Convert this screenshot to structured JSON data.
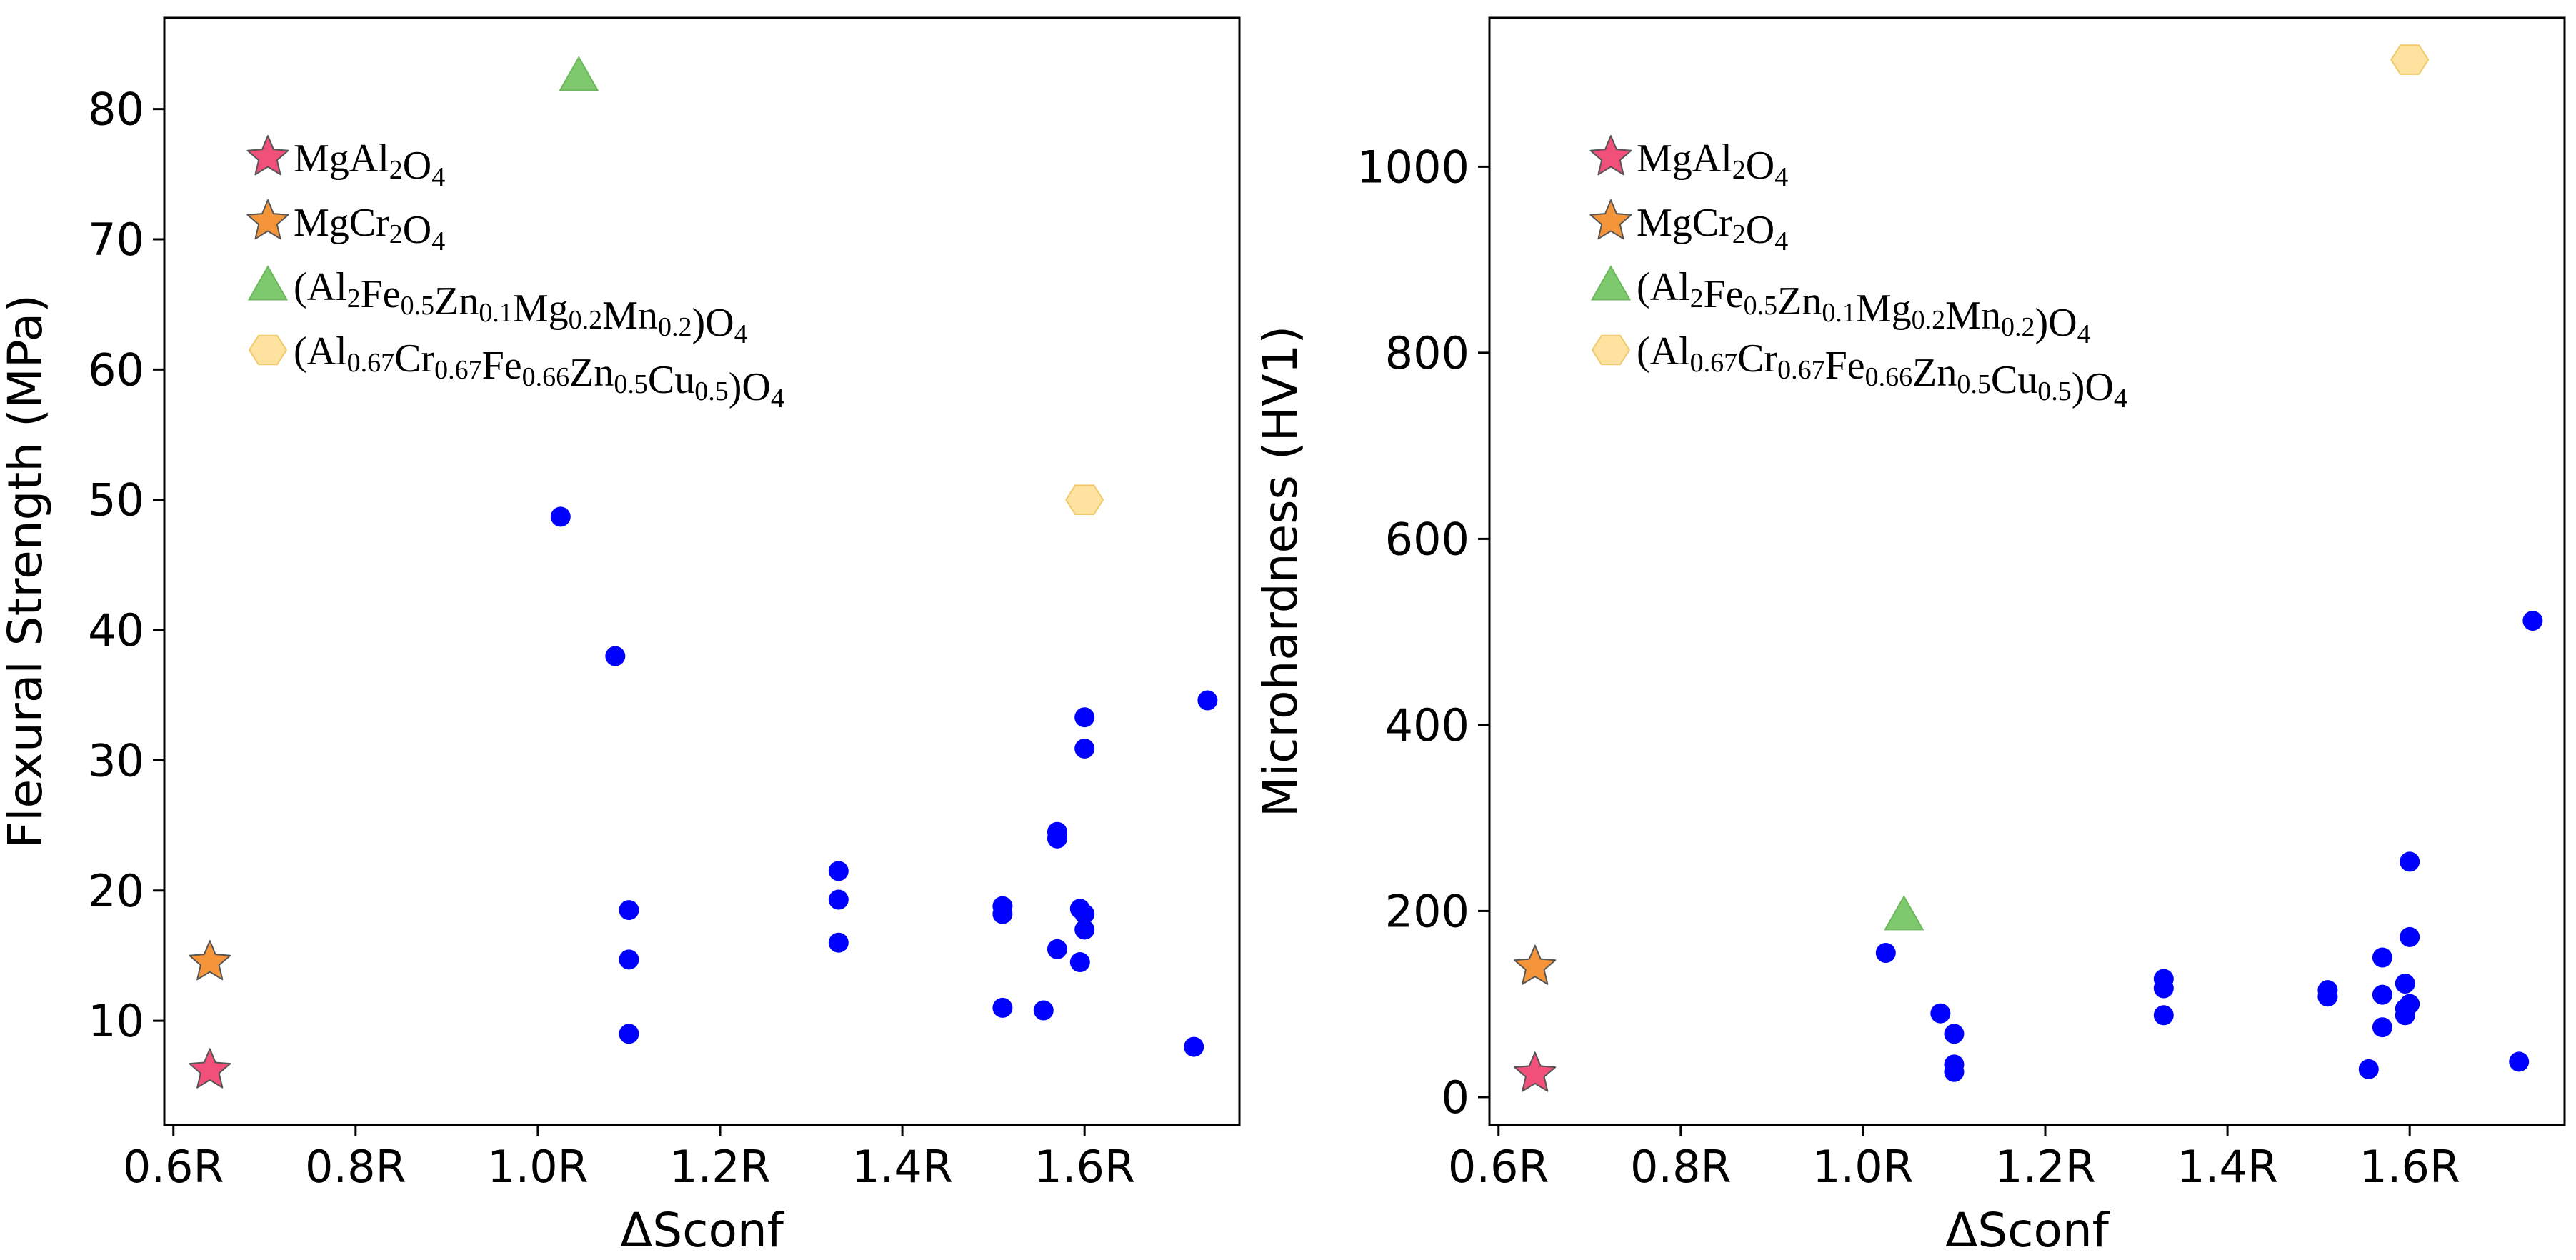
{
  "chart_data": [
    {
      "type": "scatter",
      "xlabel": "ΔSconf",
      "ylabel": "Flexural Strength (MPa)",
      "xlim": [
        0.59,
        1.77
      ],
      "ylim": [
        2,
        87
      ],
      "xticks": [
        0.6,
        0.8,
        1.0,
        1.2,
        1.4,
        1.6
      ],
      "xtick_labels": [
        "0.6R",
        "0.8R",
        "1.0R",
        "1.2R",
        "1.4R",
        "1.6R"
      ],
      "yticks": [
        10,
        20,
        30,
        40,
        50,
        60,
        70,
        80
      ],
      "ytick_labels": [
        "10",
        "20",
        "30",
        "40",
        "50",
        "60",
        "70",
        "80"
      ],
      "legend_position": "upper-left",
      "series": [
        {
          "name": "blue dots",
          "marker": "circle",
          "color": "#0000ff",
          "points": [
            [
              1.025,
              48.7
            ],
            [
              1.085,
              38.0
            ],
            [
              1.1,
              18.5
            ],
            [
              1.1,
              14.7
            ],
            [
              1.1,
              9.0
            ],
            [
              1.33,
              21.5
            ],
            [
              1.33,
              19.3
            ],
            [
              1.33,
              16.0
            ],
            [
              1.51,
              18.8
            ],
            [
              1.51,
              18.2
            ],
            [
              1.51,
              11.0
            ],
            [
              1.555,
              10.8
            ],
            [
              1.57,
              24.5
            ],
            [
              1.57,
              24.0
            ],
            [
              1.57,
              15.5
            ],
            [
              1.595,
              18.6
            ],
            [
              1.595,
              14.5
            ],
            [
              1.6,
              33.3
            ],
            [
              1.6,
              30.9
            ],
            [
              1.6,
              18.2
            ],
            [
              1.6,
              17.0
            ],
            [
              1.72,
              8.0
            ],
            [
              1.735,
              34.6
            ]
          ]
        },
        {
          "name": "MgAl2O4",
          "marker": "star",
          "color": "#f0507a",
          "points": [
            [
              0.64,
              6.2
            ]
          ]
        },
        {
          "name": "MgCr2O4",
          "marker": "star",
          "color": "#f5953a",
          "points": [
            [
              0.64,
              14.5
            ]
          ]
        },
        {
          "name": "(Al2Fe0.5Zn0.1Mg0.2Mn0.2)O4",
          "marker": "triangle",
          "color": "#7ec86e",
          "points": [
            [
              1.045,
              82.5
            ]
          ]
        },
        {
          "name": "(Al0.67Cr0.67Fe0.66Zn0.5Cu0.5)O4",
          "marker": "hexagon",
          "color": "#fde2a0",
          "points": [
            [
              1.6,
              50.0
            ]
          ]
        }
      ]
    },
    {
      "type": "scatter",
      "xlabel": "ΔSconf",
      "ylabel": "Microhardness (HV1)",
      "xlim": [
        0.59,
        1.77
      ],
      "ylim": [
        -30,
        1160
      ],
      "xticks": [
        0.6,
        0.8,
        1.0,
        1.2,
        1.4,
        1.6
      ],
      "xtick_labels": [
        "0.6R",
        "0.8R",
        "1.0R",
        "1.2R",
        "1.4R",
        "1.6R"
      ],
      "yticks": [
        0,
        200,
        400,
        600,
        800,
        1000
      ],
      "ytick_labels": [
        "0",
        "200",
        "400",
        "600",
        "800",
        "1000"
      ],
      "legend_position": "upper-left",
      "series": [
        {
          "name": "blue dots",
          "marker": "circle",
          "color": "#0000ff",
          "points": [
            [
              1.025,
              155
            ],
            [
              1.085,
              90
            ],
            [
              1.1,
              68
            ],
            [
              1.1,
              35
            ],
            [
              1.1,
              27
            ],
            [
              1.33,
              127
            ],
            [
              1.33,
              117
            ],
            [
              1.33,
              88
            ],
            [
              1.51,
              115
            ],
            [
              1.51,
              108
            ],
            [
              1.555,
              30
            ],
            [
              1.57,
              150
            ],
            [
              1.57,
              110
            ],
            [
              1.57,
              75
            ],
            [
              1.595,
              122
            ],
            [
              1.595,
              95
            ],
            [
              1.595,
              88
            ],
            [
              1.6,
              253
            ],
            [
              1.6,
              172
            ],
            [
              1.6,
              100
            ],
            [
              1.72,
              38
            ],
            [
              1.735,
              512
            ]
          ]
        },
        {
          "name": "MgAl2O4",
          "marker": "star",
          "color": "#f0507a",
          "points": [
            [
              0.64,
              25
            ]
          ]
        },
        {
          "name": "MgCr2O4",
          "marker": "star",
          "color": "#f5953a",
          "points": [
            [
              0.64,
              140
            ]
          ]
        },
        {
          "name": "(Al2Fe0.5Zn0.1Mg0.2Mn0.2)O4",
          "marker": "triangle",
          "color": "#7ec86e",
          "points": [
            [
              1.045,
              195
            ]
          ]
        },
        {
          "name": "(Al0.67Cr0.67Fe0.66Zn0.5Cu0.5)O4",
          "marker": "hexagon",
          "color": "#fde2a0",
          "points": [
            [
              1.6,
              1115
            ]
          ]
        }
      ]
    }
  ],
  "legend": [
    {
      "marker": "star",
      "color": "#f0507a",
      "parts": [
        [
          "Mg",
          ""
        ],
        [
          "Al",
          ""
        ],
        [
          "2",
          "s"
        ],
        [
          "O",
          ""
        ],
        [
          "4",
          "s"
        ]
      ]
    },
    {
      "marker": "star",
      "color": "#f5953a",
      "parts": [
        [
          "Mg",
          ""
        ],
        [
          "Cr",
          ""
        ],
        [
          "2",
          "s"
        ],
        [
          "O",
          ""
        ],
        [
          "4",
          "s"
        ]
      ]
    },
    {
      "marker": "triangle",
      "color": "#7ec86e",
      "parts": [
        [
          "(Al",
          ""
        ],
        [
          "2",
          "s"
        ],
        [
          "Fe",
          ""
        ],
        [
          "0.5",
          "s"
        ],
        [
          "Zn",
          ""
        ],
        [
          "0.1",
          "s"
        ],
        [
          "Mg",
          ""
        ],
        [
          "0.2",
          "s"
        ],
        [
          "Mn",
          ""
        ],
        [
          "0.2",
          "s"
        ],
        [
          ")O",
          ""
        ],
        [
          "4",
          "s"
        ]
      ]
    },
    {
      "marker": "hexagon",
      "color": "#fde2a0",
      "parts": [
        [
          "(Al",
          ""
        ],
        [
          "0.67",
          "s"
        ],
        [
          "Cr",
          ""
        ],
        [
          "0.67",
          "s"
        ],
        [
          "Fe",
          ""
        ],
        [
          "0.66",
          "s"
        ],
        [
          "Zn",
          ""
        ],
        [
          "0.5",
          "s"
        ],
        [
          "Cu",
          ""
        ],
        [
          "0.5",
          "s"
        ],
        [
          ")O",
          ""
        ],
        [
          "4",
          "s"
        ]
      ]
    }
  ]
}
